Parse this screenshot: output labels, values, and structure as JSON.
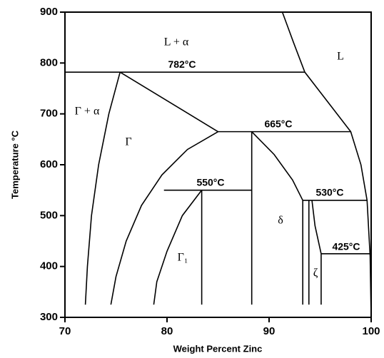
{
  "chart_data": {
    "type": "phase-diagram",
    "x_label": "Weight Percent Zinc",
    "y_label": "Temperature °C",
    "xlim": [
      70,
      100
    ],
    "ylim": [
      300,
      900
    ],
    "xticks": [
      70,
      80,
      90,
      100
    ],
    "yticks": [
      300,
      400,
      500,
      600,
      700,
      800,
      900
    ],
    "color": "#000000",
    "boundaries": [
      {
        "x": [
          91.3,
          92.4,
          93.5,
          95.5,
          98,
          99,
          99.6,
          99.9,
          100
        ],
        "values": [
          900,
          840,
          782,
          730,
          665,
          600,
          530,
          420,
          300
        ]
      },
      {
        "x": [
          75.4,
          74.3,
          73.3,
          72.6,
          72.2,
          72.0
        ],
        "values": [
          782,
          700,
          600,
          500,
          400,
          325
        ]
      },
      {
        "x": [
          75.4,
          85
        ],
        "values": [
          782,
          665
        ]
      },
      {
        "x": [
          85,
          82,
          79.5,
          77.5,
          76,
          75,
          74.5
        ],
        "values": [
          665,
          630,
          580,
          520,
          450,
          380,
          325
        ]
      },
      {
        "x": [
          83.4,
          81.5,
          80,
          79,
          78.7
        ],
        "values": [
          550,
          500,
          430,
          370,
          325
        ]
      },
      {
        "x": [
          83.4,
          83.4
        ],
        "values": [
          550,
          325
        ]
      },
      {
        "x": [
          88.3,
          88.3
        ],
        "values": [
          665,
          325
        ]
      },
      {
        "x": [
          88.3,
          90.5,
          92.3,
          93.3
        ],
        "values": [
          665,
          620,
          570,
          530
        ]
      },
      {
        "x": [
          93.3,
          93.3
        ],
        "values": [
          530,
          325
        ]
      },
      {
        "x": [
          93.9,
          93.9
        ],
        "values": [
          530,
          325
        ]
      },
      {
        "x": [
          94.2,
          94.5,
          95.1
        ],
        "values": [
          530,
          480,
          425
        ]
      },
      {
        "x": [
          95.1,
          95.1
        ],
        "values": [
          425,
          325
        ]
      }
    ],
    "isotherms": [
      {
        "value": 782,
        "label": "782°C",
        "x": [
          70,
          93.5
        ]
      },
      {
        "value": 665,
        "label": "665°C",
        "x": [
          85,
          98
        ]
      },
      {
        "value": 550,
        "label": "550°C",
        "x": [
          79.7,
          88.3
        ]
      },
      {
        "value": 530,
        "label": "530°C",
        "x": [
          93.3,
          99.6
        ]
      },
      {
        "value": 425,
        "label": "425°C",
        "x": [
          95.1,
          100
        ]
      }
    ],
    "regions": [
      "L + α",
      "L",
      "Γ + α",
      "Γ",
      "δ",
      "Γ₁",
      "ζ"
    ]
  }
}
